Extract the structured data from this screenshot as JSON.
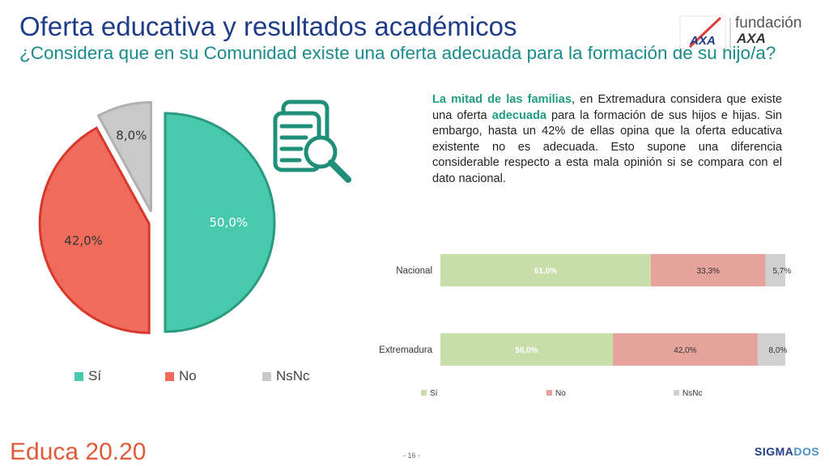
{
  "header": {
    "title": "Oferta educativa y resultados académicos",
    "subtitle": "¿Considera que en su Comunidad existe una oferta adecuada para la formación de su hijo/a?",
    "logo_line1": "fundación",
    "logo_line2": "AXA",
    "logo_badge": "AXA"
  },
  "paragraph": {
    "lead": "La mitad de las familias",
    "part1": ", en Extremadura considera que existe una oferta ",
    "highlight": "adecuada",
    "part2": " para la formación de sus hijos e hijas. Sin embargo, hasta un 42% de ellas opina que la oferta educativa existente no es adecuada. Esto supone una diferencia considerable respecto a esta mala opinión si se compara con el dato nacional."
  },
  "footer": {
    "brand": "Educa 20.20",
    "page": "- 16 -",
    "sigma_a": "SIGMA",
    "sigma_b": "DOS"
  },
  "colors": {
    "si_pie": "#48c9ad",
    "no_pie": "#ef6b5b",
    "nsnc_pie": "#c9c9c9",
    "si_bar": "#c8dea8",
    "no_bar": "#e5a39b",
    "nsnc_bar": "#d0d0d0"
  },
  "chart_data": [
    {
      "type": "pie",
      "categories": [
        "Sí",
        "No",
        "NsNc"
      ],
      "values": [
        50.0,
        42.0,
        8.0
      ],
      "labels": [
        "50,0%",
        "42,0%",
        "8,0%"
      ],
      "legend": [
        "Sí",
        "No",
        "NsNc"
      ],
      "legend_position": "bottom"
    },
    {
      "type": "bar",
      "orientation": "horizontal",
      "stacked": true,
      "categories": [
        "Nacional",
        "Extremadura"
      ],
      "series": [
        {
          "name": "Sí",
          "values": [
            61.0,
            50.0
          ],
          "labels": [
            "61,0%",
            "50,0%"
          ]
        },
        {
          "name": "No",
          "values": [
            33.3,
            42.0
          ],
          "labels": [
            "33,3%",
            "42,0%"
          ]
        },
        {
          "name": "NsNc",
          "values": [
            5.7,
            8.0
          ],
          "labels": [
            "5,7%",
            "8,0%"
          ]
        }
      ],
      "legend": [
        "Sí",
        "No",
        "NsNc"
      ],
      "legend_position": "bottom"
    }
  ]
}
